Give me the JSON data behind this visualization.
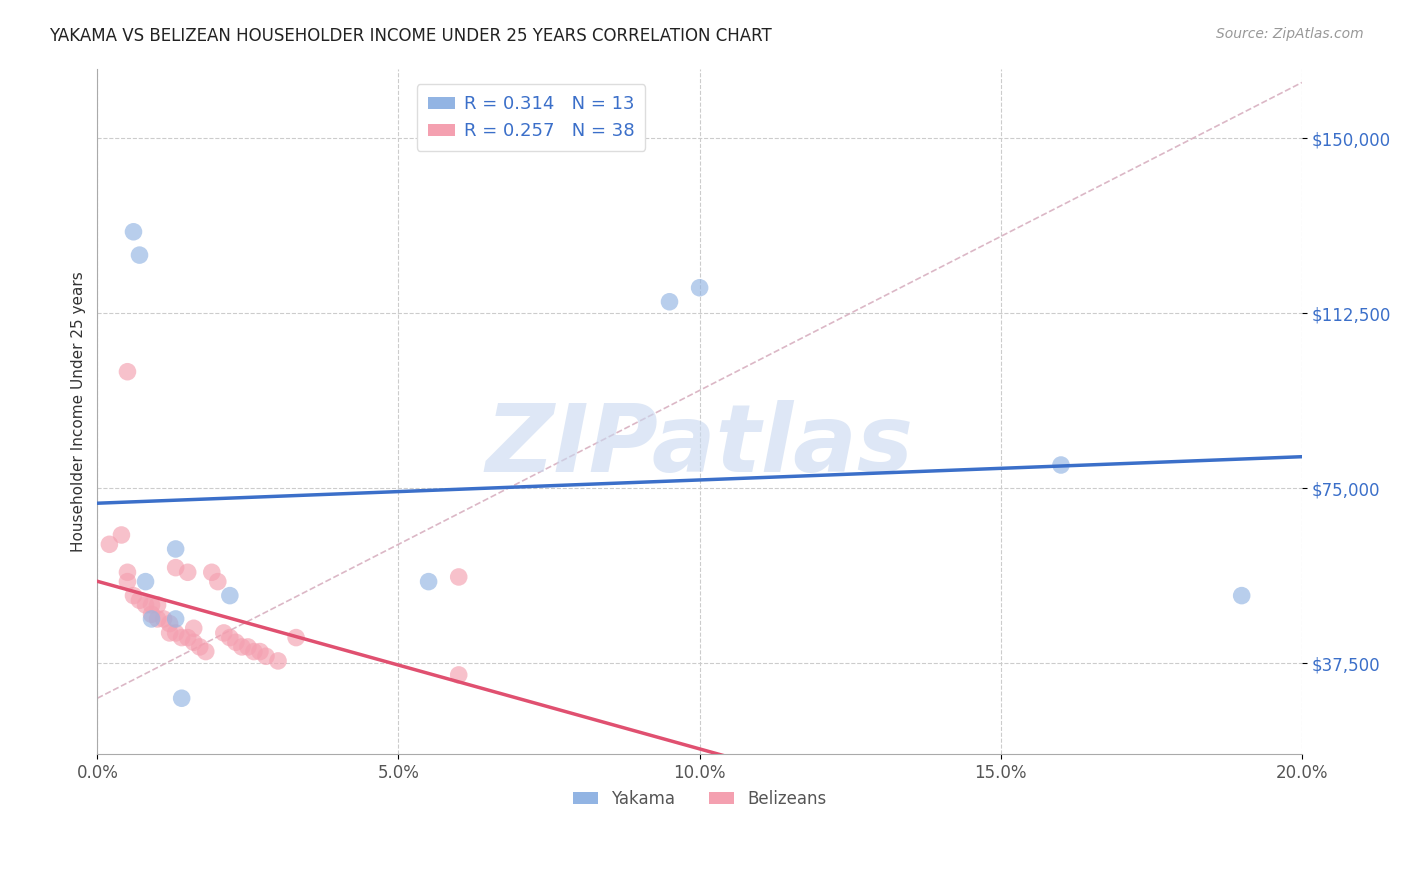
{
  "title": "YAKAMA VS BELIZEAN HOUSEHOLDER INCOME UNDER 25 YEARS CORRELATION CHART",
  "source_text": "Source: ZipAtlas.com",
  "ylabel": "Householder Income Under 25 years",
  "xlabel_ticks": [
    "0.0%",
    "5.0%",
    "10.0%",
    "15.0%",
    "20.0%"
  ],
  "xlabel_vals": [
    0.0,
    0.05,
    0.1,
    0.15,
    0.2
  ],
  "ytick_labels": [
    "$37,500",
    "$75,000",
    "$112,500",
    "$150,000"
  ],
  "ytick_vals": [
    37500,
    75000,
    112500,
    150000
  ],
  "xlim": [
    0.0,
    0.2
  ],
  "ylim": [
    18000,
    165000
  ],
  "yakama_R": 0.314,
  "yakama_N": 13,
  "belizean_R": 0.257,
  "belizean_N": 38,
  "yakama_color": "#92b4e3",
  "belizean_color": "#f4a0b0",
  "yakama_line_color": "#3b6fc9",
  "belizean_line_color": "#e05070",
  "diag_line_color": "#d8b0c0",
  "watermark": "ZIPatlas",
  "watermark_color": "#c8d8f0",
  "legend_label1": "Yakama",
  "legend_label2": "Belizeans",
  "yakama_x": [
    0.006,
    0.007,
    0.008,
    0.009,
    0.013,
    0.013,
    0.022,
    0.095,
    0.1,
    0.16,
    0.055,
    0.19,
    0.014
  ],
  "yakama_y": [
    130000,
    125000,
    55000,
    47000,
    62000,
    47000,
    52000,
    115000,
    118000,
    80000,
    55000,
    52000,
    30000
  ],
  "belizean_x": [
    0.002,
    0.004,
    0.005,
    0.005,
    0.006,
    0.007,
    0.008,
    0.009,
    0.009,
    0.01,
    0.01,
    0.011,
    0.012,
    0.012,
    0.013,
    0.013,
    0.014,
    0.015,
    0.015,
    0.016,
    0.016,
    0.017,
    0.018,
    0.019,
    0.02,
    0.021,
    0.022,
    0.023,
    0.024,
    0.025,
    0.026,
    0.027,
    0.028,
    0.03,
    0.033,
    0.06,
    0.06,
    0.005
  ],
  "belizean_y": [
    63000,
    65000,
    57000,
    55000,
    52000,
    51000,
    50000,
    50000,
    48000,
    47000,
    50000,
    47000,
    46000,
    44000,
    44000,
    58000,
    43000,
    57000,
    43000,
    45000,
    42000,
    41000,
    40000,
    57000,
    55000,
    44000,
    43000,
    42000,
    41000,
    41000,
    40000,
    40000,
    39000,
    38000,
    43000,
    56000,
    35000,
    100000
  ]
}
